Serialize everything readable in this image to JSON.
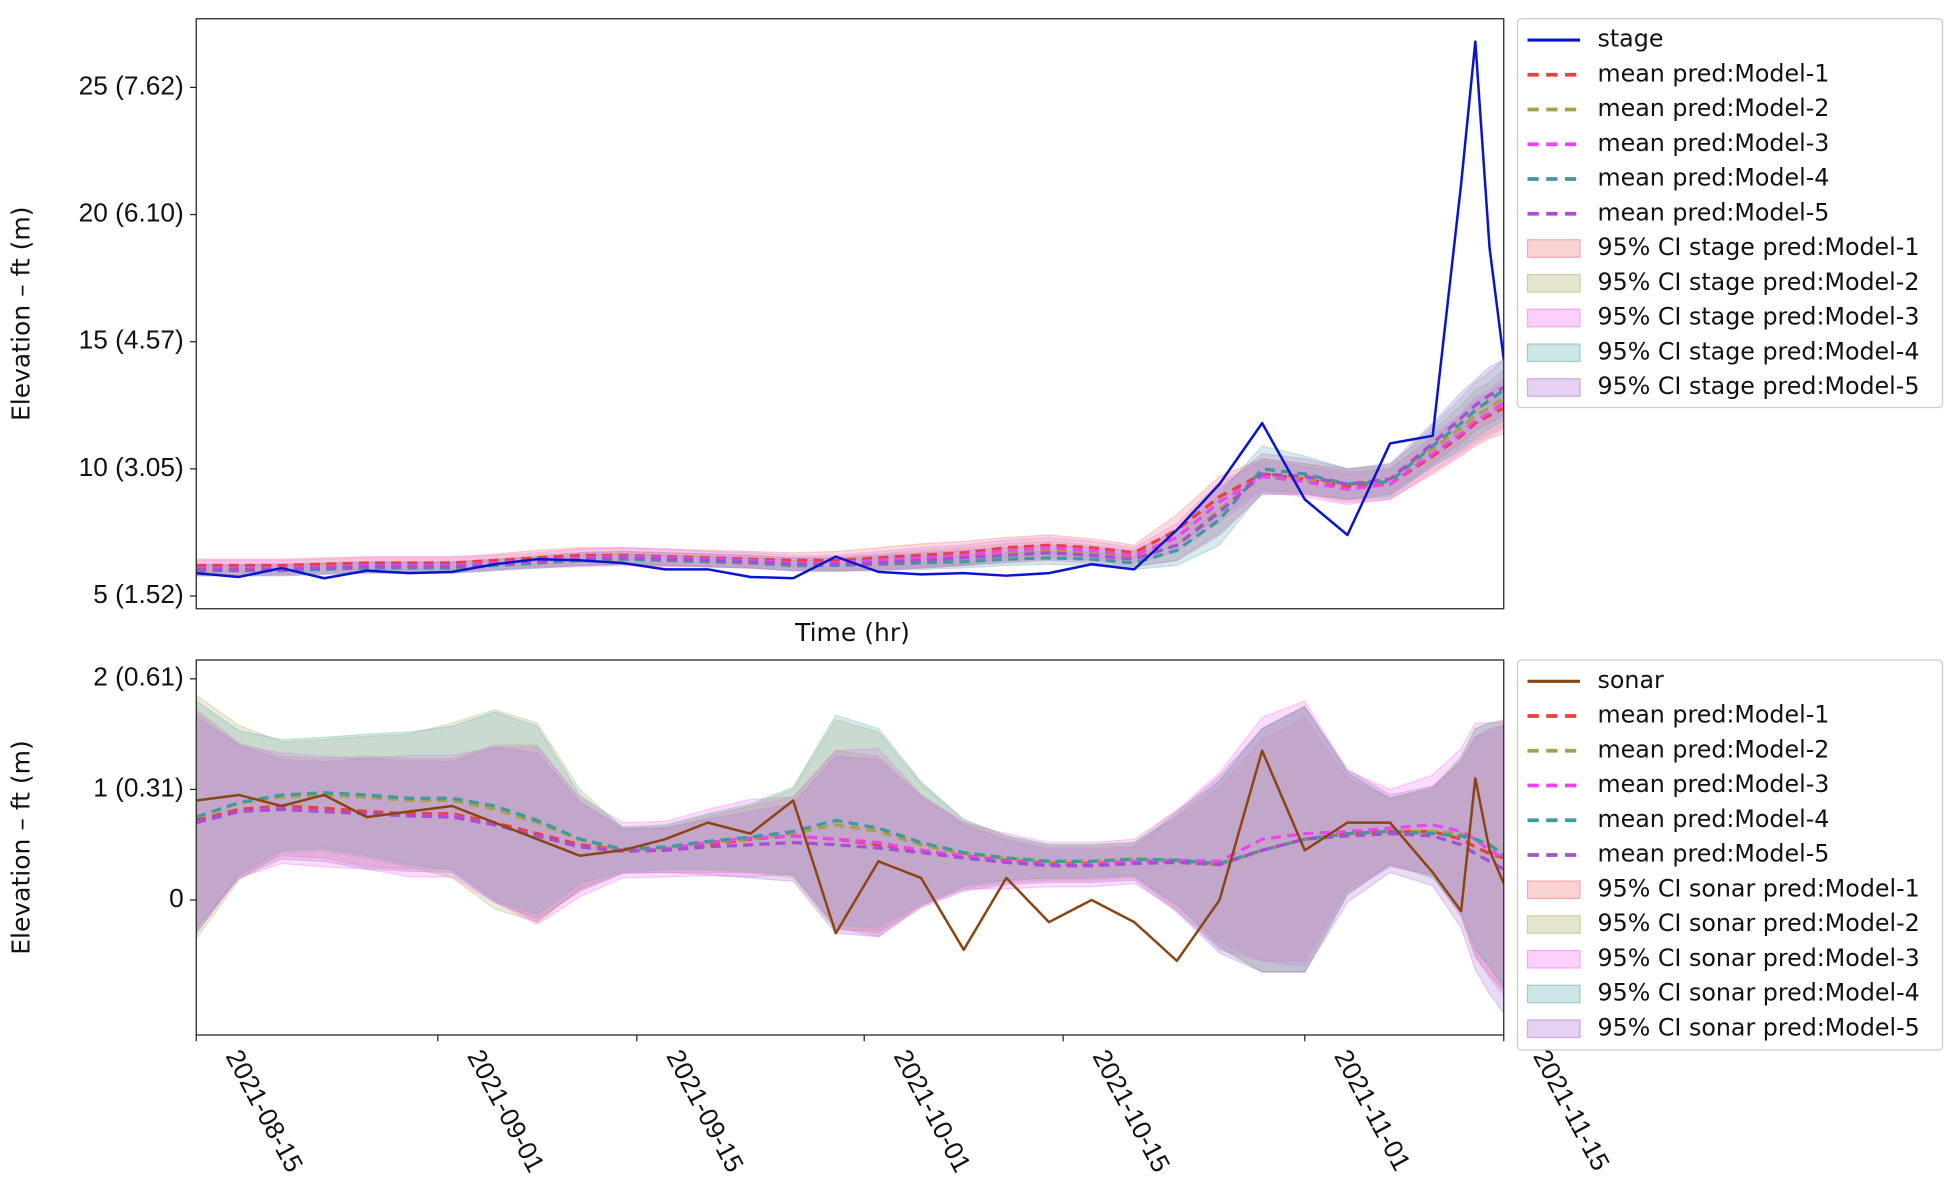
{
  "chart_data": [
    {
      "type": "line",
      "ylabel": "Elevation – ft (m)",
      "xlabel": "Time (hr)",
      "legend": "outside right",
      "xlim": [
        "2021-08-15",
        "2021-11-15"
      ],
      "ylim": [
        4.5,
        27.7
      ],
      "yticks": [
        {
          "value": 5,
          "label": "5 (1.52)"
        },
        {
          "value": 10,
          "label": "10 (3.05)"
        },
        {
          "value": 15,
          "label": "15 (4.57)"
        },
        {
          "value": 20,
          "label": "20 (6.10)"
        },
        {
          "value": 25,
          "label": "25 (7.62)"
        }
      ],
      "x": [
        "2021-08-15",
        "2021-08-18",
        "2021-08-21",
        "2021-08-24",
        "2021-08-27",
        "2021-08-30",
        "2021-09-02",
        "2021-09-05",
        "2021-09-08",
        "2021-09-11",
        "2021-09-14",
        "2021-09-17",
        "2021-09-20",
        "2021-09-23",
        "2021-09-26",
        "2021-09-29",
        "2021-10-02",
        "2021-10-05",
        "2021-10-08",
        "2021-10-11",
        "2021-10-14",
        "2021-10-17",
        "2021-10-20",
        "2021-10-23",
        "2021-10-26",
        "2021-10-29",
        "2021-11-01",
        "2021-11-04",
        "2021-11-07",
        "2021-11-10",
        "2021-11-12",
        "2021-11-13",
        "2021-11-14",
        "2021-11-15"
      ],
      "observed": {
        "name": "stage",
        "color": "#0a14cc",
        "values": [
          5.9,
          5.75,
          6.1,
          5.7,
          6.0,
          5.9,
          5.95,
          6.25,
          6.45,
          6.4,
          6.3,
          6.05,
          6.05,
          5.75,
          5.7,
          6.55,
          5.95,
          5.85,
          5.9,
          5.8,
          5.9,
          6.25,
          6.05,
          7.6,
          9.4,
          11.8,
          8.8,
          7.4,
          11.0,
          11.3,
          21.2,
          26.8,
          18.7,
          14.3
        ]
      },
      "series": [
        {
          "name": "mean pred:Model-1",
          "color": "#e8413c",
          "values": [
            6.2,
            6.2,
            6.2,
            6.25,
            6.3,
            6.3,
            6.3,
            6.4,
            6.5,
            6.6,
            6.6,
            6.55,
            6.5,
            6.45,
            6.4,
            6.4,
            6.5,
            6.6,
            6.7,
            6.9,
            7.0,
            6.9,
            6.7,
            7.6,
            8.9,
            9.8,
            9.6,
            9.3,
            9.4,
            10.5,
            11.3,
            11.8,
            12.1,
            12.4
          ]
        },
        {
          "name": "mean pred:Model-2",
          "color": "#a89f4a",
          "values": [
            6.0,
            6.0,
            6.05,
            6.1,
            6.15,
            6.15,
            6.15,
            6.25,
            6.35,
            6.45,
            6.5,
            6.45,
            6.4,
            6.35,
            6.25,
            6.25,
            6.35,
            6.45,
            6.55,
            6.7,
            6.8,
            6.7,
            6.5,
            7.0,
            8.4,
            9.7,
            9.6,
            9.4,
            9.6,
            10.8,
            11.6,
            12.1,
            12.4,
            12.8
          ]
        },
        {
          "name": "mean pred:Model-3",
          "color": "#f043f0",
          "values": [
            6.1,
            6.1,
            6.1,
            6.15,
            6.2,
            6.2,
            6.2,
            6.3,
            6.4,
            6.5,
            6.55,
            6.5,
            6.45,
            6.4,
            6.3,
            6.3,
            6.4,
            6.5,
            6.6,
            6.8,
            6.9,
            6.8,
            6.6,
            7.3,
            8.7,
            9.7,
            9.5,
            9.2,
            9.4,
            10.6,
            11.4,
            11.9,
            12.2,
            12.6
          ]
        },
        {
          "name": "mean pred:Model-4",
          "color": "#3f9a9a",
          "values": [
            6.0,
            6.0,
            6.0,
            6.05,
            6.1,
            6.1,
            6.1,
            6.2,
            6.3,
            6.4,
            6.45,
            6.4,
            6.35,
            6.3,
            6.2,
            6.2,
            6.25,
            6.3,
            6.35,
            6.45,
            6.5,
            6.45,
            6.3,
            6.8,
            8.0,
            10.0,
            9.8,
            9.4,
            9.5,
            10.9,
            11.8,
            12.3,
            12.7,
            13.1
          ]
        },
        {
          "name": "mean pred:Model-5",
          "color": "#a64fd0",
          "values": [
            6.05,
            6.05,
            6.05,
            6.1,
            6.15,
            6.15,
            6.15,
            6.25,
            6.35,
            6.45,
            6.5,
            6.45,
            6.4,
            6.35,
            6.25,
            6.25,
            6.3,
            6.4,
            6.5,
            6.6,
            6.7,
            6.6,
            6.45,
            7.0,
            8.3,
            9.8,
            9.7,
            9.4,
            9.6,
            11.0,
            12.0,
            12.5,
            12.9,
            13.2
          ]
        }
      ],
      "bands": [
        {
          "name": "95% CI stage pred:Model-1",
          "color": "#f08080",
          "halfwidth": [
            0.25,
            0.25,
            0.25,
            0.25,
            0.25,
            0.25,
            0.25,
            0.25,
            0.3,
            0.3,
            0.3,
            0.3,
            0.3,
            0.3,
            0.3,
            0.35,
            0.4,
            0.45,
            0.45,
            0.4,
            0.4,
            0.35,
            0.3,
            0.6,
            0.8,
            0.6,
            0.6,
            0.6,
            0.6,
            0.7,
            0.8,
            0.9,
            0.9,
            1.0
          ]
        },
        {
          "name": "95% CI stage pred:Model-2",
          "color": "#b8b878",
          "halfwidth": [
            0.2,
            0.2,
            0.2,
            0.2,
            0.2,
            0.2,
            0.2,
            0.2,
            0.25,
            0.25,
            0.25,
            0.25,
            0.25,
            0.25,
            0.25,
            0.3,
            0.3,
            0.35,
            0.35,
            0.35,
            0.35,
            0.3,
            0.3,
            0.6,
            0.9,
            0.7,
            0.6,
            0.6,
            0.6,
            0.7,
            0.9,
            1.0,
            1.0,
            1.1
          ]
        },
        {
          "name": "95% CI stage pred:Model-3",
          "color": "#f47cf4",
          "halfwidth": [
            0.3,
            0.3,
            0.3,
            0.3,
            0.3,
            0.3,
            0.3,
            0.3,
            0.3,
            0.35,
            0.35,
            0.35,
            0.3,
            0.3,
            0.3,
            0.3,
            0.35,
            0.4,
            0.4,
            0.4,
            0.4,
            0.35,
            0.3,
            0.55,
            0.8,
            0.6,
            0.6,
            0.6,
            0.6,
            0.7,
            0.8,
            0.9,
            0.9,
            1.0
          ]
        },
        {
          "name": "95% CI stage pred:Model-4",
          "color": "#6fb4b4",
          "halfwidth": [
            0.2,
            0.2,
            0.2,
            0.2,
            0.2,
            0.2,
            0.2,
            0.2,
            0.2,
            0.2,
            0.2,
            0.2,
            0.2,
            0.2,
            0.2,
            0.2,
            0.25,
            0.25,
            0.25,
            0.25,
            0.25,
            0.25,
            0.25,
            0.6,
            1.0,
            0.9,
            0.7,
            0.6,
            0.6,
            0.8,
            1.0,
            1.1,
            1.1,
            1.2
          ]
        },
        {
          "name": "95% CI stage pred:Model-5",
          "color": "#b57ed8",
          "halfwidth": [
            0.2,
            0.2,
            0.2,
            0.2,
            0.2,
            0.2,
            0.2,
            0.2,
            0.2,
            0.25,
            0.25,
            0.25,
            0.25,
            0.25,
            0.25,
            0.25,
            0.3,
            0.3,
            0.3,
            0.3,
            0.3,
            0.3,
            0.3,
            0.6,
            0.9,
            0.8,
            0.7,
            0.6,
            0.6,
            0.8,
            1.0,
            1.0,
            1.1,
            1.1
          ]
        }
      ]
    },
    {
      "type": "line",
      "ylabel": "Elevation – ft (m)",
      "legend": "outside right",
      "xlim": [
        "2021-08-15",
        "2021-11-15"
      ],
      "ylim": [
        -1.22,
        2.17
      ],
      "xticks": [
        "2021-08-15",
        "2021-09-01",
        "2021-09-15",
        "2021-10-01",
        "2021-10-15",
        "2021-11-01",
        "2021-11-15"
      ],
      "yticks": [
        0,
        {
          "value": 1,
          "label": "1 (0.31)"
        },
        {
          "value": 2,
          "label": "2 (0.61)"
        }
      ],
      "x": [
        "2021-08-15",
        "2021-08-18",
        "2021-08-21",
        "2021-08-24",
        "2021-08-27",
        "2021-08-30",
        "2021-09-02",
        "2021-09-05",
        "2021-09-08",
        "2021-09-11",
        "2021-09-14",
        "2021-09-17",
        "2021-09-20",
        "2021-09-23",
        "2021-09-26",
        "2021-09-29",
        "2021-10-02",
        "2021-10-05",
        "2021-10-08",
        "2021-10-11",
        "2021-10-14",
        "2021-10-17",
        "2021-10-20",
        "2021-10-23",
        "2021-10-26",
        "2021-10-29",
        "2021-11-01",
        "2021-11-04",
        "2021-11-07",
        "2021-11-10",
        "2021-11-12",
        "2021-11-13",
        "2021-11-14",
        "2021-11-15"
      ],
      "observed": {
        "name": "sonar",
        "color": "#8b4513",
        "values": [
          0.9,
          0.95,
          0.85,
          0.95,
          0.75,
          0.8,
          0.85,
          0.7,
          0.55,
          0.4,
          0.45,
          0.55,
          0.7,
          0.6,
          0.9,
          -0.3,
          0.35,
          0.2,
          -0.45,
          0.2,
          -0.2,
          0.0,
          -0.2,
          -0.55,
          0.0,
          1.35,
          0.45,
          0.7,
          0.7,
          0.25,
          -0.1,
          1.1,
          0.45,
          0.15
        ]
      },
      "series": [
        {
          "name": "mean pred:Model-1",
          "color": "#e8413c",
          "values": [
            0.72,
            0.82,
            0.85,
            0.83,
            0.8,
            0.78,
            0.78,
            0.7,
            0.6,
            0.5,
            0.45,
            0.45,
            0.5,
            0.55,
            0.58,
            0.55,
            0.5,
            0.45,
            0.4,
            0.36,
            0.33,
            0.33,
            0.35,
            0.35,
            0.32,
            0.45,
            0.55,
            0.6,
            0.62,
            0.62,
            0.55,
            0.48,
            0.42,
            0.38
          ]
        },
        {
          "name": "mean pred:Model-2",
          "color": "#a89f4a",
          "values": [
            0.75,
            0.88,
            0.93,
            0.95,
            0.93,
            0.9,
            0.9,
            0.82,
            0.7,
            0.55,
            0.45,
            0.47,
            0.52,
            0.55,
            0.6,
            0.68,
            0.62,
            0.5,
            0.42,
            0.38,
            0.35,
            0.35,
            0.37,
            0.36,
            0.32,
            0.45,
            0.55,
            0.6,
            0.62,
            0.62,
            0.6,
            0.55,
            0.5,
            0.42
          ]
        },
        {
          "name": "mean pred:Model-3",
          "color": "#f043f0",
          "values": [
            0.7,
            0.8,
            0.83,
            0.8,
            0.78,
            0.76,
            0.76,
            0.68,
            0.58,
            0.48,
            0.45,
            0.46,
            0.52,
            0.56,
            0.58,
            0.55,
            0.52,
            0.45,
            0.4,
            0.35,
            0.32,
            0.32,
            0.35,
            0.36,
            0.35,
            0.55,
            0.6,
            0.62,
            0.65,
            0.68,
            0.62,
            0.55,
            0.45,
            0.38
          ]
        },
        {
          "name": "mean pred:Model-4",
          "color": "#3f9a9a",
          "values": [
            0.75,
            0.88,
            0.95,
            0.97,
            0.95,
            0.92,
            0.92,
            0.85,
            0.72,
            0.55,
            0.46,
            0.48,
            0.53,
            0.57,
            0.62,
            0.72,
            0.65,
            0.52,
            0.43,
            0.38,
            0.35,
            0.35,
            0.37,
            0.36,
            0.33,
            0.45,
            0.55,
            0.6,
            0.62,
            0.6,
            0.58,
            0.55,
            0.5,
            0.4
          ]
        },
        {
          "name": "mean pred:Model-5",
          "color": "#a64fd0",
          "values": [
            0.7,
            0.8,
            0.82,
            0.8,
            0.78,
            0.76,
            0.75,
            0.68,
            0.58,
            0.48,
            0.44,
            0.45,
            0.48,
            0.5,
            0.52,
            0.5,
            0.47,
            0.43,
            0.38,
            0.34,
            0.31,
            0.31,
            0.33,
            0.34,
            0.32,
            0.45,
            0.55,
            0.58,
            0.6,
            0.58,
            0.5,
            0.42,
            0.35,
            0.28
          ]
        }
      ],
      "bands": [
        {
          "name": "95% CI sonar pred:Model-1",
          "color": "#f08080",
          "halfwidth": [
            1.0,
            0.6,
            0.45,
            0.45,
            0.5,
            0.5,
            0.5,
            0.7,
            0.8,
            0.4,
            0.2,
            0.2,
            0.25,
            0.3,
            0.35,
            0.8,
            0.8,
            0.5,
            0.3,
            0.2,
            0.15,
            0.15,
            0.15,
            0.4,
            0.7,
            1.0,
            1.1,
            0.5,
            0.3,
            0.4,
            0.7,
            1.0,
            1.1,
            1.2
          ]
        },
        {
          "name": "95% CI sonar pred:Model-2",
          "color": "#b8b878",
          "halfwidth": [
            1.1,
            0.7,
            0.5,
            0.5,
            0.55,
            0.6,
            0.7,
            0.9,
            0.9,
            0.45,
            0.2,
            0.2,
            0.25,
            0.3,
            0.4,
            0.95,
            0.9,
            0.55,
            0.3,
            0.2,
            0.15,
            0.15,
            0.15,
            0.45,
            0.75,
            1.1,
            1.2,
            0.55,
            0.3,
            0.4,
            0.7,
            1.0,
            1.1,
            1.2
          ]
        },
        {
          "name": "95% CI sonar pred:Model-3",
          "color": "#f47cf4",
          "halfwidth": [
            1.0,
            0.6,
            0.5,
            0.5,
            0.5,
            0.55,
            0.55,
            0.7,
            0.8,
            0.45,
            0.25,
            0.25,
            0.3,
            0.35,
            0.35,
            0.8,
            0.85,
            0.5,
            0.3,
            0.25,
            0.2,
            0.2,
            0.2,
            0.45,
            0.8,
            1.1,
            1.2,
            0.55,
            0.35,
            0.45,
            0.75,
            1.05,
            1.15,
            1.25
          ]
        },
        {
          "name": "95% CI sonar pred:Model-4",
          "color": "#6fb4b4",
          "halfwidth": [
            1.05,
            0.65,
            0.5,
            0.5,
            0.55,
            0.6,
            0.65,
            0.85,
            0.85,
            0.4,
            0.2,
            0.2,
            0.25,
            0.3,
            0.4,
            0.95,
            0.9,
            0.55,
            0.3,
            0.2,
            0.15,
            0.15,
            0.15,
            0.4,
            0.75,
            1.1,
            1.2,
            0.55,
            0.3,
            0.4,
            0.7,
            1.0,
            1.1,
            1.2
          ]
        },
        {
          "name": "95% CI sonar pred:Model-5",
          "color": "#b57ed8",
          "halfwidth": [
            0.95,
            0.6,
            0.45,
            0.45,
            0.5,
            0.5,
            0.5,
            0.7,
            0.75,
            0.4,
            0.2,
            0.2,
            0.25,
            0.3,
            0.35,
            0.8,
            0.8,
            0.5,
            0.3,
            0.2,
            0.15,
            0.15,
            0.15,
            0.45,
            0.8,
            1.1,
            1.2,
            0.6,
            0.35,
            0.45,
            0.75,
            1.05,
            1.2,
            1.3
          ]
        }
      ]
    }
  ]
}
